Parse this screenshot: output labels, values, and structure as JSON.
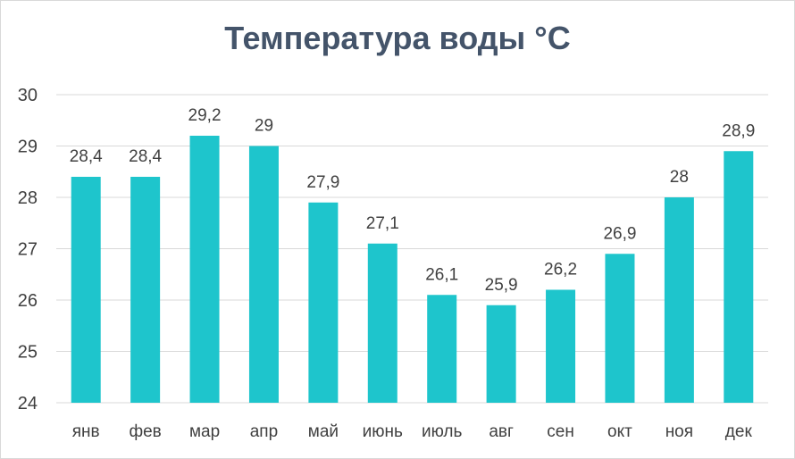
{
  "chart_data": {
    "type": "bar",
    "title": "Температура воды °C",
    "categories": [
      "янв",
      "фев",
      "мар",
      "апр",
      "май",
      "июнь",
      "июль",
      "авг",
      "сен",
      "окт",
      "ноя",
      "дек"
    ],
    "values": [
      28.4,
      28.4,
      29.2,
      29,
      27.9,
      27.1,
      26.1,
      25.9,
      26.2,
      26.9,
      28,
      28.9
    ],
    "data_labels": [
      "28,4",
      "28,4",
      "29,2",
      "29",
      "27,9",
      "27,1",
      "26,1",
      "25,9",
      "26,2",
      "26,9",
      "28",
      "28,9"
    ],
    "ylim": [
      24,
      30
    ],
    "yticks": [
      "24",
      "25",
      "26",
      "27",
      "28",
      "29",
      "30"
    ],
    "grid": true,
    "bar_color": "#1ec5cc",
    "grid_color": "#d9d9d9"
  }
}
